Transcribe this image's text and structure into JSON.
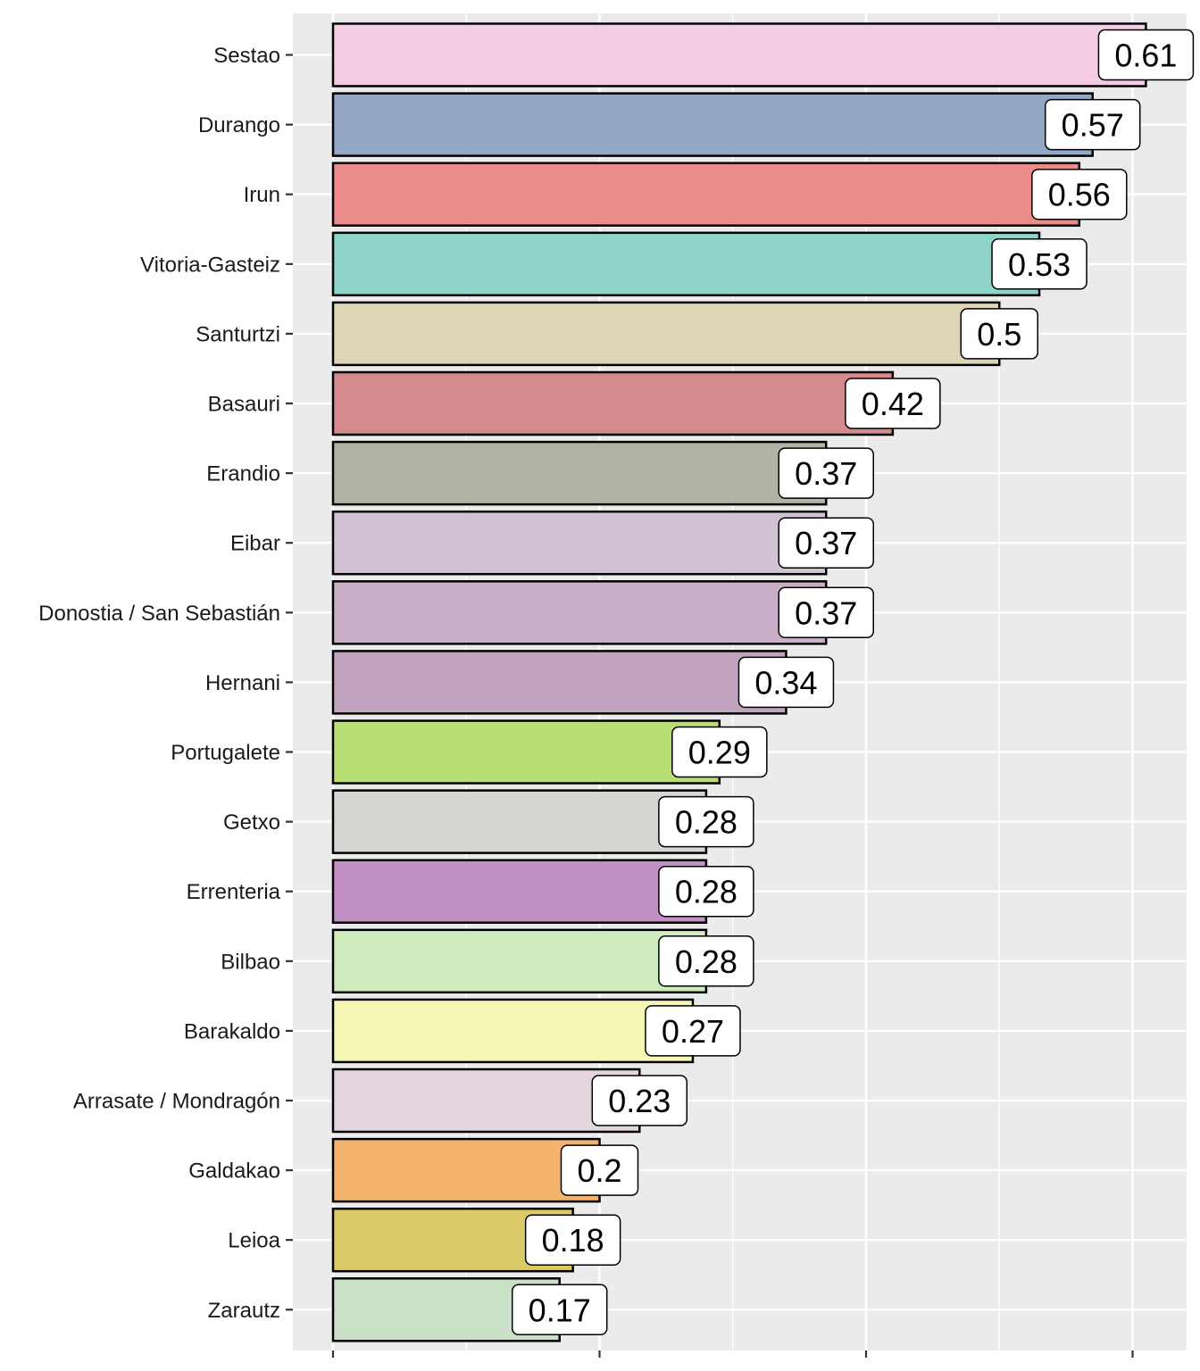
{
  "chart_data": {
    "type": "bar",
    "orientation": "horizontal",
    "title": "",
    "xlabel": "",
    "ylabel": "",
    "xlim": [
      0,
      0.64
    ],
    "x_major_ticks": [
      0,
      0.2,
      0.4,
      0.6
    ],
    "x_tick_labels_shown": false,
    "grid": true,
    "categories": [
      "Sestao",
      "Durango",
      "Irun",
      "Vitoria-Gasteiz",
      "Santurtzi",
      "Basauri",
      "Erandio",
      "Eibar",
      "Donostia / San Sebastián",
      "Hernani",
      "Portugalete",
      "Getxo",
      "Errenteria",
      "Bilbao",
      "Barakaldo",
      "Arrasate / Mondragón",
      "Galdakao",
      "Leioa",
      "Zarautz"
    ],
    "values": [
      0.61,
      0.57,
      0.56,
      0.53,
      0.5,
      0.42,
      0.37,
      0.37,
      0.37,
      0.34,
      0.29,
      0.28,
      0.28,
      0.28,
      0.27,
      0.23,
      0.2,
      0.18,
      0.17
    ],
    "labels": [
      "0.61",
      "0.57",
      "0.56",
      "0.53",
      "0.5",
      "0.42",
      "0.37",
      "0.37",
      "0.37",
      "0.34",
      "0.29",
      "0.28",
      "0.28",
      "0.28",
      "0.27",
      "0.23",
      "0.2",
      "0.18",
      "0.17"
    ],
    "colors": [
      "#F4CDE4",
      "#92A8C3",
      "#EB8B8A",
      "#8ED4C8",
      "#DED5B5",
      "#D58B8D",
      "#B1B4A5",
      "#D2C3D4",
      "#CAADC7",
      "#C2A3BF",
      "#B7DF73",
      "#D5D5D1",
      "#C290C3",
      "#CDEBBB",
      "#F6F6B4",
      "#E3D6DF",
      "#F4B26B",
      "#DACB68",
      "#CAE0C7"
    ]
  }
}
